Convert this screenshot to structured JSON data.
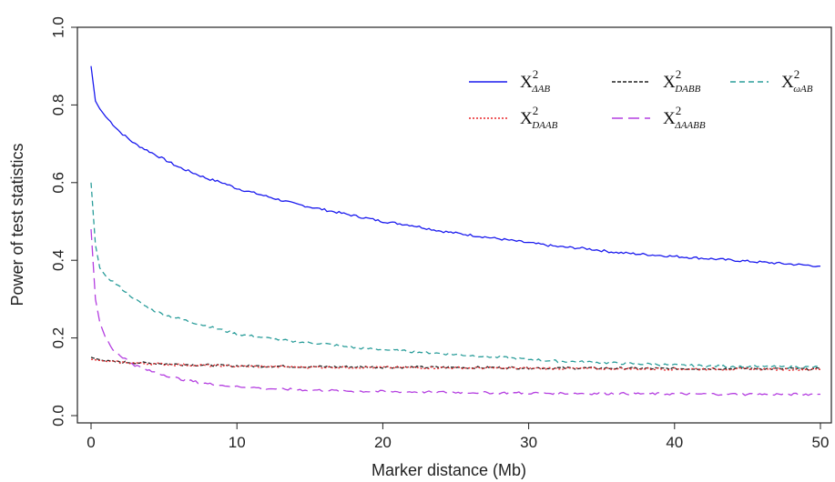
{
  "chart_data": {
    "type": "line",
    "title": "",
    "xlabel": "Marker distance (Mb)",
    "ylabel": "Power of test statistics",
    "xlim": [
      0,
      50
    ],
    "ylim": [
      0.0,
      1.0
    ],
    "xticks": [
      0,
      10,
      20,
      30,
      40,
      50
    ],
    "yticks": [
      0.0,
      0.2,
      0.4,
      0.6,
      0.8,
      1.0
    ],
    "ytick_labels": [
      "0.0",
      "0.2",
      "0.4",
      "0.6",
      "0.8",
      "1.0"
    ],
    "grid": false,
    "legend_position": "top-right",
    "series": [
      {
        "name": "X²ΔAB",
        "label_base": "X",
        "label_sup": "2",
        "label_sub": "ΔAB",
        "color": "#1a1aee",
        "dash": "solid",
        "x": [
          0,
          0.3,
          0.6,
          1,
          1.5,
          2,
          3,
          4,
          5,
          6,
          7,
          8,
          9,
          10,
          12,
          14,
          16,
          18,
          20,
          22,
          24,
          26,
          28,
          30,
          32,
          34,
          36,
          38,
          40,
          42,
          44,
          46,
          48,
          50
        ],
        "y": [
          0.9,
          0.81,
          0.79,
          0.77,
          0.75,
          0.73,
          0.7,
          0.68,
          0.66,
          0.64,
          0.625,
          0.61,
          0.6,
          0.585,
          0.565,
          0.545,
          0.53,
          0.515,
          0.5,
          0.49,
          0.475,
          0.465,
          0.455,
          0.445,
          0.435,
          0.43,
          0.42,
          0.415,
          0.41,
          0.405,
          0.4,
          0.395,
          0.39,
          0.385
        ]
      },
      {
        "name": "X²DABB",
        "label_base": "X",
        "label_sup": "2",
        "label_sub": "DABB",
        "color": "#222222",
        "dash": "4,2",
        "x": [
          0,
          1,
          2,
          4,
          6,
          8,
          10,
          15,
          20,
          25,
          30,
          35,
          40,
          45,
          50
        ],
        "y": [
          0.15,
          0.14,
          0.138,
          0.135,
          0.132,
          0.13,
          0.128,
          0.126,
          0.125,
          0.124,
          0.123,
          0.122,
          0.121,
          0.121,
          0.12
        ]
      },
      {
        "name": "X²ωAB",
        "label_base": "X",
        "label_sup": "2",
        "label_sub": "ωAB",
        "color": "#2a9d9a",
        "dash": "6,4",
        "x": [
          0,
          0.3,
          0.6,
          1,
          1.5,
          2,
          3,
          4,
          5,
          6,
          7,
          8,
          9,
          10,
          12,
          14,
          16,
          18,
          20,
          22,
          24,
          26,
          28,
          30,
          32,
          34,
          36,
          38,
          40,
          42,
          44,
          46,
          48,
          50
        ],
        "y": [
          0.6,
          0.44,
          0.38,
          0.36,
          0.345,
          0.33,
          0.3,
          0.275,
          0.26,
          0.25,
          0.24,
          0.23,
          0.22,
          0.21,
          0.2,
          0.19,
          0.185,
          0.175,
          0.17,
          0.165,
          0.16,
          0.155,
          0.15,
          0.145,
          0.14,
          0.138,
          0.135,
          0.133,
          0.13,
          0.128,
          0.127,
          0.126,
          0.125,
          0.125
        ]
      },
      {
        "name": "X²DAAB",
        "label_base": "X",
        "label_sup": "2",
        "label_sub": "DAAB",
        "color": "#e8262a",
        "dash": "2,2",
        "x": [
          0,
          1,
          2,
          4,
          6,
          8,
          10,
          15,
          20,
          25,
          30,
          35,
          40,
          45,
          50
        ],
        "y": [
          0.145,
          0.14,
          0.137,
          0.134,
          0.131,
          0.129,
          0.127,
          0.125,
          0.124,
          0.123,
          0.122,
          0.121,
          0.12,
          0.12,
          0.119
        ]
      },
      {
        "name": "X²ΔAABB",
        "label_base": "X",
        "label_sup": "2",
        "label_sub": "ΔAABB",
        "color": "#b43ee0",
        "dash": "12,6",
        "x": [
          0,
          0.3,
          0.6,
          1,
          1.5,
          2,
          3,
          4,
          5,
          6,
          7,
          8,
          9,
          10,
          12,
          14,
          16,
          18,
          20,
          25,
          30,
          35,
          40,
          45,
          50
        ],
        "y": [
          0.48,
          0.3,
          0.24,
          0.2,
          0.17,
          0.155,
          0.13,
          0.115,
          0.105,
          0.095,
          0.088,
          0.082,
          0.078,
          0.075,
          0.07,
          0.067,
          0.065,
          0.063,
          0.062,
          0.06,
          0.058,
          0.057,
          0.056,
          0.055,
          0.055
        ]
      }
    ]
  }
}
